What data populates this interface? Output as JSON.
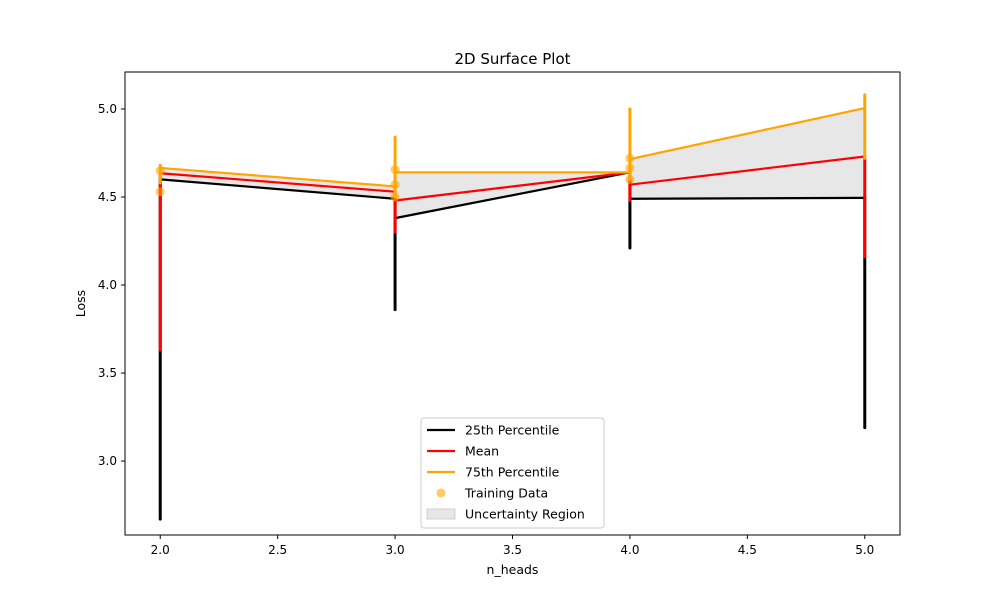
{
  "chart_data": {
    "type": "line",
    "title": "2D Surface Plot",
    "xlabel": "n_heads",
    "ylabel": "Loss",
    "xlim": [
      1.85,
      5.15
    ],
    "ylim": [
      2.58,
      5.21
    ],
    "xticks": [
      2.0,
      2.5,
      3.0,
      3.5,
      4.0,
      4.5,
      5.0
    ],
    "xtick_labels": [
      "2.0",
      "2.5",
      "3.0",
      "3.5",
      "4.0",
      "4.5",
      "5.0"
    ],
    "yticks": [
      3.0,
      3.5,
      4.0,
      4.5,
      5.0
    ],
    "ytick_labels": [
      "3.0",
      "3.5",
      "4.0",
      "4.5",
      "5.0"
    ],
    "grid": false,
    "legend_position": "bottom-center",
    "series": [
      {
        "name": "25th Percentile",
        "color": "#000000",
        "segments": [
          [
            [
              2.0,
              4.6
            ],
            [
              3.0,
              4.49
            ]
          ],
          [
            [
              3.0,
              4.38
            ],
            [
              4.0,
              4.64
            ]
          ],
          [
            [
              4.0,
              4.49
            ],
            [
              5.0,
              4.495
            ]
          ]
        ],
        "verticals": [
          {
            "x": 2.0,
            "y0": 2.67,
            "y1": 4.6
          },
          {
            "x": 3.0,
            "y0": 3.86,
            "y1": 4.49
          },
          {
            "x": 4.0,
            "y0": 4.21,
            "y1": 4.64
          },
          {
            "x": 5.0,
            "y0": 3.19,
            "y1": 4.5
          }
        ]
      },
      {
        "name": "Mean",
        "color": "#ff0000",
        "segments": [
          [
            [
              2.0,
              4.635
            ],
            [
              3.0,
              4.53
            ]
          ],
          [
            [
              3.0,
              4.48
            ],
            [
              4.0,
              4.64
            ]
          ],
          [
            [
              4.0,
              4.57
            ],
            [
              5.0,
              4.73
            ]
          ]
        ],
        "verticals": [
          {
            "x": 2.0,
            "y0": 3.63,
            "y1": 4.635
          },
          {
            "x": 3.0,
            "y0": 4.3,
            "y1": 4.53
          },
          {
            "x": 4.0,
            "y0": 4.48,
            "y1": 4.64
          },
          {
            "x": 5.0,
            "y0": 4.16,
            "y1": 4.73
          }
        ]
      },
      {
        "name": "75th Percentile",
        "color": "#ffa500",
        "segments": [
          [
            [
              2.0,
              4.665
            ],
            [
              3.0,
              4.56
            ]
          ],
          [
            [
              3.0,
              4.64
            ],
            [
              4.0,
              4.64
            ]
          ],
          [
            [
              4.0,
              4.715
            ],
            [
              5.0,
              5.005
            ]
          ]
        ],
        "verticals": [
          {
            "x": 2.0,
            "y0": 4.58,
            "y1": 4.68
          },
          {
            "x": 3.0,
            "y0": 4.5,
            "y1": 4.84
          },
          {
            "x": 4.0,
            "y0": 4.6,
            "y1": 5.0
          },
          {
            "x": 5.0,
            "y0": 4.72,
            "y1": 5.08
          }
        ]
      }
    ],
    "training_data": {
      "name": "Training Data",
      "color": "#ffa500",
      "points": [
        {
          "x": 2.0,
          "y": 4.53
        },
        {
          "x": 2.0,
          "y": 4.65
        },
        {
          "x": 3.0,
          "y": 4.5
        },
        {
          "x": 3.0,
          "y": 4.57
        },
        {
          "x": 3.0,
          "y": 4.655
        },
        {
          "x": 4.0,
          "y": 4.6
        },
        {
          "x": 4.0,
          "y": 4.665
        },
        {
          "x": 4.0,
          "y": 4.72
        }
      ]
    },
    "uncertainty_region": {
      "name": "Uncertainty Region",
      "color": "#d3d3d3",
      "polygons": [
        {
          "lower": [
            [
              2.0,
              4.6
            ],
            [
              3.0,
              4.49
            ]
          ],
          "upper": [
            [
              2.0,
              4.665
            ],
            [
              3.0,
              4.56
            ]
          ]
        },
        {
          "lower": [
            [
              3.0,
              4.38
            ],
            [
              4.0,
              4.64
            ]
          ],
          "upper": [
            [
              3.0,
              4.64
            ],
            [
              4.0,
              4.64
            ]
          ]
        },
        {
          "lower": [
            [
              4.0,
              4.49
            ],
            [
              5.0,
              4.495
            ]
          ],
          "upper": [
            [
              4.0,
              4.715
            ],
            [
              5.0,
              5.005
            ]
          ]
        }
      ]
    },
    "legend": [
      {
        "label": "25th Percentile",
        "kind": "line",
        "color": "#000000"
      },
      {
        "label": "Mean",
        "kind": "line",
        "color": "#ff0000"
      },
      {
        "label": "75th Percentile",
        "kind": "line",
        "color": "#ffa500"
      },
      {
        "label": "Training Data",
        "kind": "marker",
        "color": "#ffa500"
      },
      {
        "label": "Uncertainty Region",
        "kind": "patch",
        "color": "#d3d3d3"
      }
    ]
  }
}
